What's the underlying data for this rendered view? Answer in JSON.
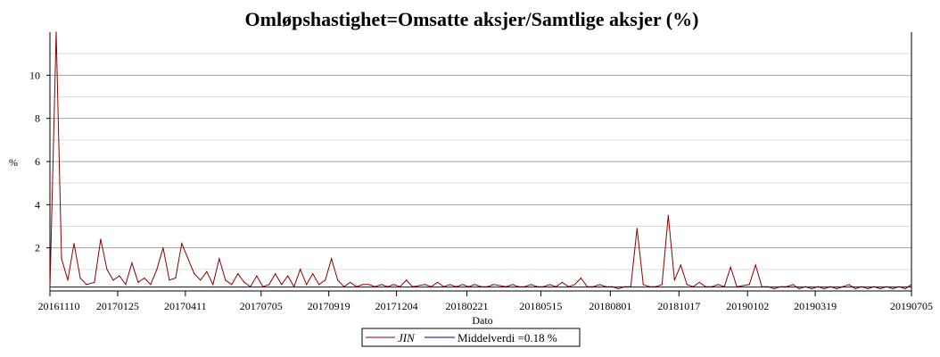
{
  "chart_data": {
    "type": "line",
    "title": "Omløpshastighet=Omsatte aksjer/Samtlige aksjer (%)",
    "xlabel": "Dato",
    "ylabel": "%",
    "ylim": [
      0,
      12
    ],
    "yticks": [
      2,
      4,
      6,
      8,
      10
    ],
    "xticks": [
      "20161110",
      "20170125",
      "20170411",
      "20170705",
      "20170919",
      "20171204",
      "20180221",
      "20180515",
      "20180801",
      "20181017",
      "20190102",
      "20190319",
      "20190705"
    ],
    "grid": true,
    "legend_position": "bottom-center",
    "series": [
      {
        "name": "JIN",
        "color": "#8b0000",
        "points": [
          [
            "20161110",
            0.1
          ],
          [
            "20161117",
            12.0
          ],
          [
            "20161123",
            1.5
          ],
          [
            "20161130",
            0.5
          ],
          [
            "20161207",
            2.2
          ],
          [
            "20161214",
            0.6
          ],
          [
            "20161221",
            0.3
          ],
          [
            "20161230",
            0.4
          ],
          [
            "20170106",
            2.4
          ],
          [
            "20170113",
            1.0
          ],
          [
            "20170120",
            0.5
          ],
          [
            "20170127",
            0.7
          ],
          [
            "20170203",
            0.3
          ],
          [
            "20170210",
            1.3
          ],
          [
            "20170217",
            0.4
          ],
          [
            "20170224",
            0.6
          ],
          [
            "20170303",
            0.3
          ],
          [
            "20170310",
            1.0
          ],
          [
            "20170317",
            2.0
          ],
          [
            "20170324",
            0.5
          ],
          [
            "20170331",
            0.6
          ],
          [
            "20170407",
            2.2
          ],
          [
            "20170421",
            0.8
          ],
          [
            "20170428",
            0.5
          ],
          [
            "20170505",
            0.9
          ],
          [
            "20170512",
            0.3
          ],
          [
            "20170519",
            1.5
          ],
          [
            "20170526",
            0.5
          ],
          [
            "20170602",
            0.3
          ],
          [
            "20170609",
            0.8
          ],
          [
            "20170616",
            0.4
          ],
          [
            "20170623",
            0.2
          ],
          [
            "20170630",
            0.7
          ],
          [
            "20170707",
            0.2
          ],
          [
            "20170714",
            0.3
          ],
          [
            "20170721",
            0.8
          ],
          [
            "20170728",
            0.3
          ],
          [
            "20170804",
            0.7
          ],
          [
            "20170811",
            0.2
          ],
          [
            "20170818",
            1.0
          ],
          [
            "20170825",
            0.3
          ],
          [
            "20170901",
            0.8
          ],
          [
            "20170908",
            0.3
          ],
          [
            "20170915",
            0.5
          ],
          [
            "20170922",
            1.5
          ],
          [
            "20170929",
            0.5
          ],
          [
            "20171006",
            0.2
          ],
          [
            "20171013",
            0.4
          ],
          [
            "20171020",
            0.2
          ],
          [
            "20171027",
            0.3
          ],
          [
            "20171103",
            0.3
          ],
          [
            "20171110",
            0.2
          ],
          [
            "20171117",
            0.3
          ],
          [
            "20171124",
            0.2
          ],
          [
            "20171201",
            0.3
          ],
          [
            "20171208",
            0.2
          ],
          [
            "20171215",
            0.5
          ],
          [
            "20171222",
            0.2
          ],
          [
            "20180105",
            0.3
          ],
          [
            "20180112",
            0.2
          ],
          [
            "20180119",
            0.4
          ],
          [
            "20180126",
            0.2
          ],
          [
            "20180202",
            0.3
          ],
          [
            "20180209",
            0.2
          ],
          [
            "20180216",
            0.3
          ],
          [
            "20180223",
            0.2
          ],
          [
            "20180302",
            0.3
          ],
          [
            "20180309",
            0.2
          ],
          [
            "20180316",
            0.2
          ],
          [
            "20180323",
            0.3
          ],
          [
            "20180406",
            0.2
          ],
          [
            "20180413",
            0.3
          ],
          [
            "20180420",
            0.2
          ],
          [
            "20180427",
            0.2
          ],
          [
            "20180504",
            0.3
          ],
          [
            "20180511",
            0.2
          ],
          [
            "20180518",
            0.2
          ],
          [
            "20180525",
            0.3
          ],
          [
            "20180601",
            0.2
          ],
          [
            "20180608",
            0.4
          ],
          [
            "20180615",
            0.2
          ],
          [
            "20180622",
            0.3
          ],
          [
            "20180629",
            0.6
          ],
          [
            "20180706",
            0.2
          ],
          [
            "20180713",
            0.2
          ],
          [
            "20180720",
            0.3
          ],
          [
            "20180727",
            0.2
          ],
          [
            "20180803",
            0.2
          ],
          [
            "20180810",
            0.1
          ],
          [
            "20180817",
            0.2
          ],
          [
            "20180824",
            0.2
          ],
          [
            "20180831",
            2.9
          ],
          [
            "20180907",
            0.3
          ],
          [
            "20180914",
            0.2
          ],
          [
            "20180921",
            0.2
          ],
          [
            "20180928",
            0.3
          ],
          [
            "20181005",
            3.5
          ],
          [
            "20181012",
            0.5
          ],
          [
            "20181019",
            1.2
          ],
          [
            "20181026",
            0.3
          ],
          [
            "20181102",
            0.2
          ],
          [
            "20181109",
            0.4
          ],
          [
            "20181116",
            0.2
          ],
          [
            "20181123",
            0.2
          ],
          [
            "20181130",
            0.3
          ],
          [
            "20181207",
            0.2
          ],
          [
            "20181214",
            1.1
          ],
          [
            "20181221",
            0.2
          ],
          [
            "20190104",
            0.3
          ],
          [
            "20190111",
            1.2
          ],
          [
            "20190118",
            0.2
          ],
          [
            "20190125",
            0.2
          ],
          [
            "20190201",
            0.1
          ],
          [
            "20190208",
            0.2
          ],
          [
            "20190215",
            0.2
          ],
          [
            "20190222",
            0.3
          ],
          [
            "20190301",
            0.1
          ],
          [
            "20190308",
            0.2
          ],
          [
            "20190315",
            0.1
          ],
          [
            "20190322",
            0.2
          ],
          [
            "20190329",
            0.1
          ],
          [
            "20190405",
            0.2
          ],
          [
            "20190412",
            0.1
          ],
          [
            "20190419",
            0.2
          ],
          [
            "20190426",
            0.3
          ],
          [
            "20190503",
            0.1
          ],
          [
            "20190510",
            0.2
          ],
          [
            "20190517",
            0.1
          ],
          [
            "20190524",
            0.2
          ],
          [
            "20190531",
            0.1
          ],
          [
            "20190607",
            0.2
          ],
          [
            "20190614",
            0.1
          ],
          [
            "20190621",
            0.2
          ],
          [
            "20190628",
            0.1
          ],
          [
            "20190705",
            0.3
          ]
        ]
      },
      {
        "name": "Middelverdi =0.18 %",
        "color": "#00008b",
        "points": [
          [
            "20161110",
            0.18
          ],
          [
            "20190705",
            0.18
          ]
        ]
      }
    ]
  }
}
